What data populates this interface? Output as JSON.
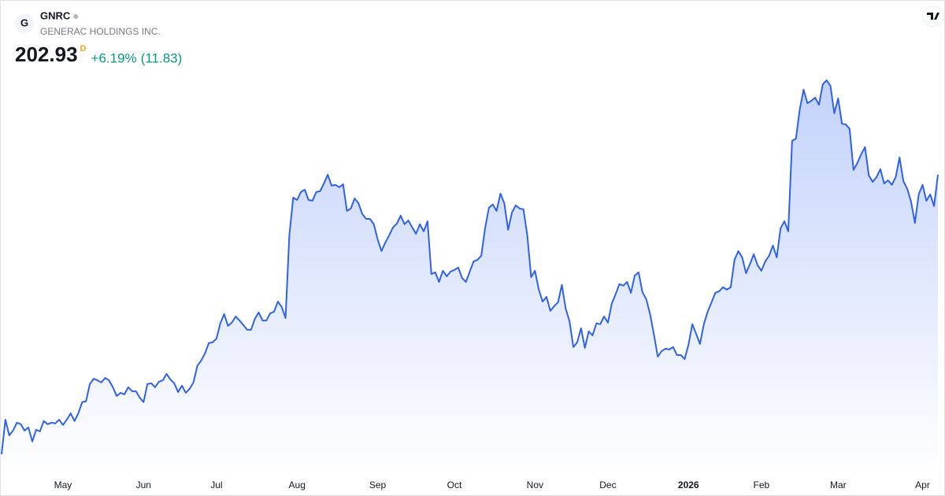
{
  "chart_data": {
    "type": "area",
    "logo": "G",
    "symbol": "GNRC",
    "title": "GENERAC HOLDINGS INC.",
    "price": 202.93,
    "interval": "D",
    "change_percent": {
      "value": 6.19,
      "label": "+6.19%"
    },
    "change": {
      "value": 11.83,
      "label": "(11.83)"
    },
    "color": "#2f62e8",
    "fill_color": "#c3d2fb",
    "categories": [
      null,
      null,
      null,
      null,
      null,
      null,
      null,
      null,
      null,
      null,
      null,
      null,
      null,
      null,
      null,
      null,
      "May",
      null,
      null,
      null,
      null,
      null,
      null,
      null,
      null,
      null,
      null,
      null,
      null,
      null,
      null,
      null,
      null,
      null,
      null,
      null,
      null,
      "Jun",
      null,
      null,
      null,
      null,
      null,
      null,
      null,
      null,
      null,
      null,
      null,
      null,
      null,
      null,
      null,
      null,
      null,
      null,
      "Jul",
      null,
      null,
      null,
      null,
      null,
      null,
      null,
      null,
      null,
      null,
      null,
      null,
      null,
      null,
      null,
      null,
      null,
      null,
      null,
      null,
      "Aug",
      null,
      null,
      null,
      null,
      null,
      null,
      null,
      null,
      null,
      null,
      null,
      null,
      null,
      null,
      null,
      null,
      null,
      null,
      null,
      null,
      "Sep",
      null,
      null,
      null,
      null,
      null,
      null,
      null,
      null,
      null,
      null,
      null,
      null,
      null,
      null,
      null,
      null,
      null,
      null,
      null,
      "Oct",
      null,
      null,
      null,
      null,
      null,
      null,
      null,
      null,
      null,
      null,
      null,
      null,
      null,
      null,
      null,
      null,
      null,
      null,
      null,
      null,
      "Nov",
      null,
      null,
      null,
      null,
      null,
      null,
      null,
      null,
      null,
      null,
      null,
      null,
      null,
      null,
      null,
      null,
      null,
      null,
      "Dec",
      null,
      null,
      null,
      null,
      null,
      null,
      null,
      null,
      null,
      null,
      null,
      null,
      null,
      null,
      null,
      null,
      null,
      null,
      null,
      null,
      "2026",
      null,
      null,
      null,
      null,
      null,
      null,
      null,
      null,
      null,
      null,
      null,
      null,
      null,
      null,
      null,
      null,
      null,
      null,
      "Feb",
      null,
      null,
      null,
      null,
      null,
      null,
      null,
      null,
      null,
      null,
      null,
      null,
      null,
      null,
      null,
      null,
      null,
      null,
      null,
      "Mar",
      null,
      null,
      null,
      null,
      null,
      null,
      null,
      null,
      null,
      null,
      null,
      null,
      null,
      null,
      null,
      null,
      null,
      null,
      null,
      null,
      null,
      "Apr",
      null,
      null,
      null,
      null
    ],
    "values": [
      97.8,
      110.8,
      104.9,
      106.7,
      109.7,
      109.1,
      106.7,
      107.9,
      102.6,
      107.0,
      106.4,
      110.3,
      109.1,
      109.7,
      109.4,
      110.8,
      108.8,
      110.8,
      113.2,
      110.3,
      113.2,
      117.4,
      117.7,
      124.2,
      126.2,
      125.6,
      124.8,
      126.5,
      125.6,
      123.0,
      119.7,
      120.9,
      120.3,
      123.0,
      121.5,
      121.5,
      119.1,
      117.4,
      124.2,
      124.5,
      123.0,
      125.1,
      125.6,
      128.0,
      125.9,
      124.5,
      121.2,
      123.6,
      120.9,
      122.4,
      124.8,
      131.0,
      133.0,
      135.7,
      139.6,
      139.9,
      141.3,
      147.0,
      150.5,
      146.1,
      147.3,
      149.6,
      148.1,
      146.4,
      144.6,
      144.6,
      148.7,
      151.1,
      148.1,
      148.1,
      150.8,
      151.4,
      155.2,
      153.2,
      149.0,
      180.4,
      194.3,
      193.4,
      196.4,
      197.3,
      193.4,
      193.1,
      196.4,
      196.7,
      199.6,
      202.9,
      198.8,
      199.1,
      198.2,
      199.3,
      189.3,
      190.2,
      194.0,
      192.2,
      188.1,
      186.3,
      186.3,
      184.3,
      178.6,
      174.2,
      177.4,
      180.1,
      183.1,
      184.5,
      187.5,
      184.3,
      185.7,
      183.1,
      180.7,
      184.3,
      181.6,
      185.4,
      165.6,
      166.2,
      162.6,
      166.8,
      164.7,
      166.5,
      167.1,
      168.0,
      164.1,
      162.6,
      166.5,
      170.3,
      170.9,
      172.4,
      182.8,
      190.5,
      191.7,
      189.3,
      195.8,
      192.2,
      182.2,
      188.7,
      191.4,
      190.2,
      189.9,
      180.1,
      164.4,
      166.8,
      159.7,
      155.2,
      157.0,
      151.7,
      153.5,
      154.9,
      161.5,
      152.6,
      147.8,
      138.1,
      139.9,
      145.2,
      137.8,
      144.0,
      142.5,
      147.0,
      146.7,
      149.6,
      147.3,
      154.4,
      157.9,
      161.8,
      161.2,
      162.6,
      158.5,
      165.0,
      166.2,
      158.8,
      156.1,
      150.5,
      142.8,
      134.5,
      136.6,
      137.5,
      137.2,
      138.1,
      135.1,
      135.1,
      133.6,
      139.0,
      146.7,
      143.1,
      139.3,
      146.7,
      151.4,
      154.9,
      158.5,
      159.1,
      160.6,
      159.7,
      160.6,
      170.9,
      174.2,
      171.8,
      165.9,
      169.2,
      173.0,
      168.9,
      166.8,
      170.3,
      172.4,
      176.3,
      171.8,
      182.8,
      185.4,
      181.6,
      215.6,
      216.5,
      227.5,
      234.9,
      229.8,
      230.7,
      231.9,
      229.2,
      236.9,
      238.4,
      236.3,
      226.0,
      231.6,
      222.1,
      221.8,
      220.1,
      204.7,
      207.3,
      210.6,
      213.3,
      202.6,
      200.2,
      202.0,
      205.0,
      199.6,
      200.8,
      199.1,
      202.0,
      209.4,
      200.5,
      197.6,
      192.8,
      184.8,
      195.5,
      199.1,
      193.1,
      195.5,
      191.1,
      202.93
    ]
  }
}
